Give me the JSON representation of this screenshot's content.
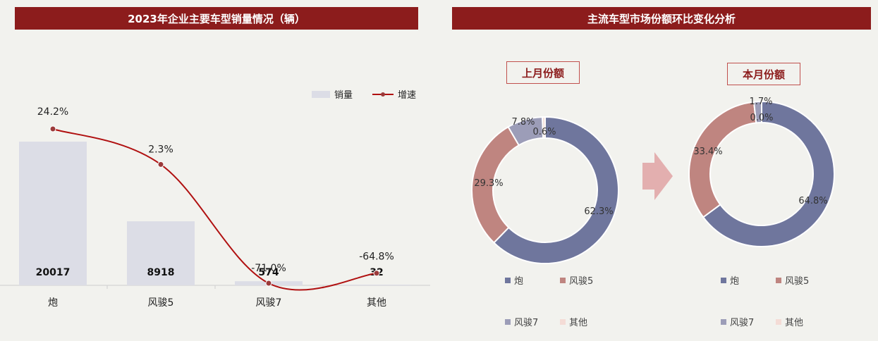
{
  "bar_panel": {
    "title": "2023年企业主要车型销量情况（辆）"
  },
  "donut_panel": {
    "title": "主流车型市场份额环比变化分析",
    "prev_label": "上月份额",
    "curr_label": "本月份额"
  },
  "colors": {
    "bar": "#dcdde6",
    "line": "#b01010",
    "marker": "#9b3a3a",
    "pao": "#6f769d",
    "fengjun5": "#bf8580",
    "fengjun7": "#9c9db8",
    "other": "#f4dcd6"
  },
  "legend": {
    "bar": "销量",
    "line": "增速"
  },
  "donut_legend": [
    "炮",
    "风骏5",
    "风骏7",
    "其他"
  ],
  "chart_data": [
    {
      "type": "bar",
      "categories": [
        "炮",
        "风骏5",
        "风骏7",
        "其他"
      ],
      "series": [
        {
          "name": "销量",
          "values": [
            20017,
            8918,
            574,
            32
          ]
        },
        {
          "name": "增速",
          "type": "line",
          "values": [
            24.2,
            2.3,
            -71.0,
            -64.8
          ],
          "labels": [
            "24.2%",
            "2.3%",
            "-71.0%",
            "-64.8%"
          ]
        }
      ],
      "bar_labels": [
        "20017",
        "8918",
        "574",
        "32"
      ]
    },
    {
      "type": "pie",
      "categories": [
        "炮",
        "风骏5",
        "风骏7",
        "其他"
      ],
      "values": [
        62.3,
        29.3,
        7.8,
        0.6
      ],
      "labels": [
        "62.3%",
        "29.3%",
        "7.8%",
        "0.6%"
      ]
    },
    {
      "type": "pie",
      "categories": [
        "炮",
        "风骏5",
        "风骏7",
        "其他"
      ],
      "values": [
        64.8,
        33.4,
        1.7,
        0.0
      ],
      "labels": [
        "64.8%",
        "33.4%",
        "1.7%",
        "0.0%"
      ]
    }
  ]
}
